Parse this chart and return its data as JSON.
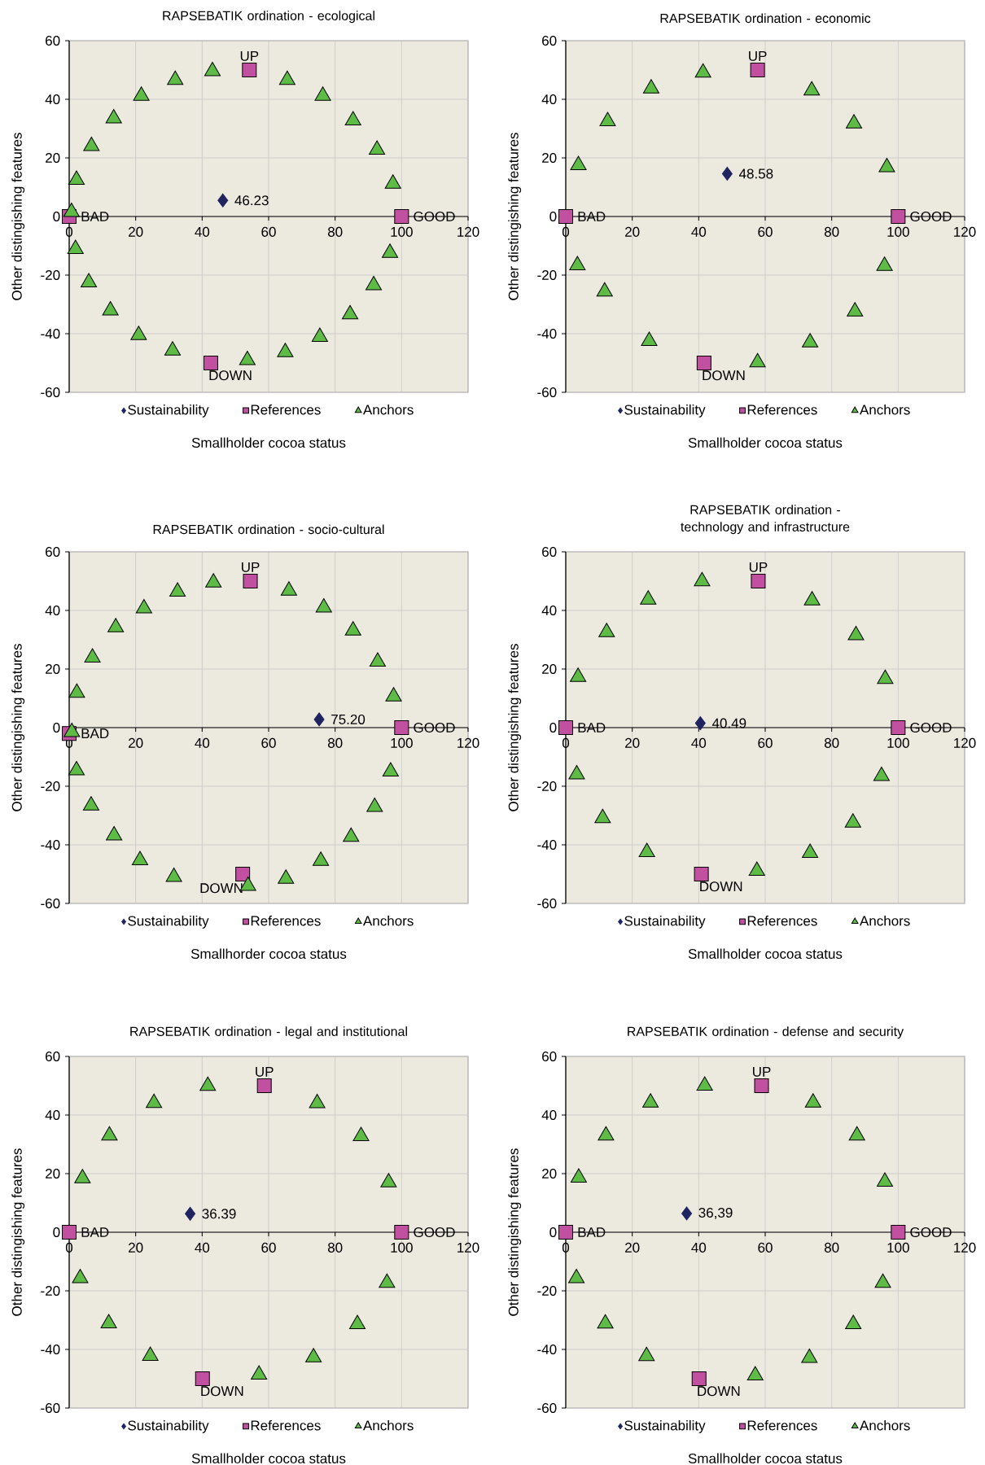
{
  "chart_data": [
    {
      "type": "scatter",
      "title": "RAPSEBATIK ordination - ecological",
      "xlabel": "Smallholder cocoa status",
      "ylabel": "Other distingishing features",
      "xlim": [
        0,
        120
      ],
      "ylim": [
        -60,
        60
      ],
      "xticks": [
        0,
        20,
        40,
        60,
        80,
        100,
        120
      ],
      "yticks": [
        -60,
        -40,
        -20,
        0,
        20,
        40,
        60
      ],
      "grid": true,
      "legend": "bottom",
      "series": [
        {
          "name": "Sustainability",
          "color": "#1f2461",
          "marker": "diamond",
          "x": [
            46.23
          ],
          "values": [
            5.5
          ]
        },
        {
          "name": "References",
          "color": "#c150a0",
          "marker": "square",
          "x": [
            0,
            100,
            54.2,
            42.6
          ],
          "values": [
            0,
            0,
            50,
            -50
          ]
        },
        {
          "name": "Anchors",
          "color": "#5dbb46",
          "marker": "triangle",
          "x": [
            0.7,
            2.2,
            6.7,
            13.4,
            21.7,
            31.9,
            43.1,
            65.6,
            76.3,
            85.4,
            92.6,
            97.4,
            96.5,
            91.6,
            84.5,
            75.4,
            65,
            53.6,
            31.1,
            20.9,
            12.4,
            5.9,
            1.9
          ],
          "values": [
            1.5,
            12.5,
            24,
            33.5,
            41.2,
            46.6,
            49.6,
            46.6,
            41.2,
            32.8,
            22.8,
            11.2,
            -12.4,
            -23.5,
            -33.4,
            -41.1,
            -46.3,
            -49,
            -45.8,
            -40.5,
            -32.1,
            -22.5,
            -11.1
          ]
        }
      ],
      "annotations": [
        {
          "text": "46.23",
          "x": 46.23,
          "y": 5.5
        },
        {
          "text": "BAD",
          "x": 0,
          "y": 0
        },
        {
          "text": "GOOD",
          "x": 100,
          "y": 0
        },
        {
          "text": "UP",
          "x": 54.2,
          "y": 50
        },
        {
          "text": "DOWN",
          "x": 42.6,
          "y": -50
        }
      ]
    },
    {
      "type": "scatter",
      "title": "RAPSEBATIK ordination - economic",
      "xlabel": "Smallholder cocoa status",
      "ylabel": "Other distingishing features",
      "xlim": [
        0,
        120
      ],
      "ylim": [
        -60,
        60
      ],
      "xticks": [
        0,
        20,
        40,
        60,
        80,
        100,
        120
      ],
      "yticks": [
        -60,
        -40,
        -20,
        0,
        20,
        40,
        60
      ],
      "grid": true,
      "legend": "bottom",
      "series": [
        {
          "name": "Sustainability",
          "color": "#1f2461",
          "marker": "diamond",
          "x": [
            48.58
          ],
          "values": [
            14.6
          ]
        },
        {
          "name": "References",
          "color": "#c150a0",
          "marker": "square",
          "x": [
            0,
            100,
            57.7,
            41.6
          ],
          "values": [
            0,
            0,
            50,
            -50
          ]
        },
        {
          "name": "Anchors",
          "color": "#5dbb46",
          "marker": "triangle",
          "x": [
            3.8,
            12.6,
            25.7,
            41.3,
            74,
            86.7,
            96.6,
            95.9,
            87,
            73.5,
            57.7,
            25.1,
            11.7,
            3.5
          ],
          "values": [
            17.5,
            32.5,
            43.7,
            49.1,
            43,
            31.7,
            16.8,
            -16.9,
            -32.4,
            -43,
            -49.8,
            -42.5,
            -25.6,
            -16.7
          ]
        }
      ],
      "annotations": [
        {
          "text": "48.58",
          "x": 48.58,
          "y": 14.6
        },
        {
          "text": "BAD",
          "x": 0,
          "y": 0
        },
        {
          "text": "GOOD",
          "x": 100,
          "y": 0
        },
        {
          "text": "UP",
          "x": 57.7,
          "y": 50
        },
        {
          "text": "DOWN",
          "x": 41.6,
          "y": -50
        }
      ]
    },
    {
      "type": "scatter",
      "title": "RAPSEBATIK ordination - socio-cultural",
      "xlabel": "Smallhorder cocoa status",
      "ylabel": "Other distingishing features",
      "xlim": [
        0,
        120
      ],
      "ylim": [
        -60,
        60
      ],
      "xticks": [
        0,
        20,
        40,
        60,
        80,
        100,
        120
      ],
      "yticks": [
        -60,
        -40,
        -20,
        0,
        20,
        40,
        60
      ],
      "grid": true,
      "legend": "bottom",
      "series": [
        {
          "name": "Sustainability",
          "color": "#1f2461",
          "marker": "diamond",
          "x": [
            75.2
          ],
          "values": [
            2.8
          ]
        },
        {
          "name": "References",
          "color": "#c150a0",
          "marker": "square",
          "x": [
            0,
            100,
            54.5,
            52.2
          ],
          "values": [
            -2,
            0,
            50,
            -50
          ]
        },
        {
          "name": "Anchors",
          "color": "#5dbb46",
          "marker": "triangle",
          "x": [
            0.8,
            2.3,
            7,
            14,
            22.5,
            32.6,
            43.4,
            66.1,
            76.6,
            85.4,
            92.8,
            97.6,
            96.7,
            91.9,
            84.8,
            75.7,
            65.2,
            53.8,
            31.5,
            21.3,
            13.5,
            6.6,
            2.2
          ],
          "values": [
            -1.5,
            11.9,
            23.9,
            34.2,
            40.7,
            46.4,
            49.5,
            46.7,
            41,
            33.1,
            22.5,
            10.6,
            -15,
            -27.1,
            -37.3,
            -45.5,
            -51.6,
            -54,
            -51,
            -45.3,
            -36.8,
            -26.6,
            -14.6
          ]
        }
      ],
      "annotations": [
        {
          "text": "75.20",
          "x": 75.2,
          "y": 2.8
        },
        {
          "text": "BAD",
          "x": 0,
          "y": -2
        },
        {
          "text": "GOOD",
          "x": 100,
          "y": 0
        },
        {
          "text": "UP",
          "x": 54.5,
          "y": 50
        },
        {
          "text": "DOWN",
          "x": 52.2,
          "y": -50
        }
      ]
    },
    {
      "type": "scatter",
      "title": "RAPSEBATIK ordination - technology and infrastructure",
      "xlabel": "Smallholder cocoa status",
      "ylabel": "Other distingishing features",
      "xlim": [
        0,
        120
      ],
      "ylim": [
        -60,
        60
      ],
      "xticks": [
        0,
        20,
        40,
        60,
        80,
        100,
        120
      ],
      "yticks": [
        -60,
        -40,
        -20,
        0,
        20,
        40,
        60
      ],
      "grid": true,
      "legend": "bottom",
      "series": [
        {
          "name": "Sustainability",
          "color": "#1f2461",
          "marker": "diamond",
          "x": [
            40.49
          ],
          "values": [
            1.5
          ]
        },
        {
          "name": "References",
          "color": "#c150a0",
          "marker": "square",
          "x": [
            0,
            100,
            57.9,
            40.8
          ],
          "values": [
            0,
            0,
            50,
            -50
          ]
        },
        {
          "name": "Anchors",
          "color": "#5dbb46",
          "marker": "triangle",
          "x": [
            3.7,
            12.3,
            24.8,
            41,
            74.1,
            87.3,
            96.1,
            95,
            86.4,
            73.5,
            57.5,
            24.4,
            11.1,
            3.3
          ],
          "values": [
            17.3,
            32.6,
            43.7,
            49.9,
            43.4,
            31.5,
            16.6,
            -16.5,
            -32.4,
            -42.8,
            -48.9,
            -42.5,
            -30.9,
            -16
          ]
        }
      ],
      "annotations": [
        {
          "text": "40.49",
          "x": 40.49,
          "y": 1.5
        },
        {
          "text": "BAD",
          "x": 0,
          "y": 0
        },
        {
          "text": "GOOD",
          "x": 100,
          "y": 0
        },
        {
          "text": "UP",
          "x": 57.9,
          "y": 50
        },
        {
          "text": "DOWN",
          "x": 40.8,
          "y": -50
        }
      ]
    },
    {
      "type": "scatter",
      "title": "RAPSEBATIK ordination - legal and institutional",
      "xlabel": "Smallholder cocoa status",
      "ylabel": "Other distingishing features",
      "xlim": [
        0,
        120
      ],
      "ylim": [
        -60,
        60
      ],
      "xticks": [
        0,
        20,
        40,
        60,
        80,
        100,
        120
      ],
      "yticks": [
        -60,
        -40,
        -20,
        0,
        20,
        40,
        60
      ],
      "grid": true,
      "legend": "bottom",
      "series": [
        {
          "name": "Sustainability",
          "color": "#1f2461",
          "marker": "diamond",
          "x": [
            36.39
          ],
          "values": [
            6.3
          ]
        },
        {
          "name": "References",
          "color": "#c150a0",
          "marker": "square",
          "x": [
            0,
            100,
            58.7,
            40.1
          ],
          "values": [
            0,
            0,
            50,
            -50
          ]
        },
        {
          "name": "Anchors",
          "color": "#5dbb46",
          "marker": "triangle",
          "x": [
            4,
            12.1,
            25.5,
            41.7,
            74.6,
            87.8,
            96.1,
            95.6,
            86.7,
            73.5,
            57.1,
            24.4,
            11.9,
            3.3
          ],
          "values": [
            18.4,
            33,
            44.1,
            49.9,
            44,
            32.8,
            17,
            -17.3,
            -31.4,
            -42.7,
            -48.6,
            -42.2,
            -31.1,
            -15.7
          ]
        }
      ],
      "annotations": [
        {
          "text": "36.39",
          "x": 36.39,
          "y": 6.3
        },
        {
          "text": "BAD",
          "x": 0,
          "y": 0
        },
        {
          "text": "GOOD",
          "x": 100,
          "y": 0
        },
        {
          "text": "UP",
          "x": 58.7,
          "y": 50
        },
        {
          "text": "DOWN",
          "x": 40.1,
          "y": -50
        }
      ]
    },
    {
      "type": "scatter",
      "title": "RAPSEBATIK ordination - defense and security",
      "xlabel": "Smallholder cocoa status",
      "ylabel": "Other distingishing features",
      "xlim": [
        0,
        120
      ],
      "ylim": [
        -60,
        60
      ],
      "xticks": [
        0,
        20,
        40,
        60,
        80,
        100,
        120
      ],
      "yticks": [
        -60,
        -40,
        -20,
        0,
        20,
        40,
        60
      ],
      "grid": true,
      "legend": "bottom",
      "series": [
        {
          "name": "Sustainability",
          "color": "#1f2461",
          "marker": "diamond",
          "x": [
            36.39
          ],
          "values": [
            6.4
          ]
        },
        {
          "name": "References",
          "color": "#c150a0",
          "marker": "square",
          "x": [
            0,
            100,
            58.9,
            40.1
          ],
          "values": [
            0,
            0,
            50,
            -50
          ]
        },
        {
          "name": "Anchors",
          "color": "#5dbb46",
          "marker": "triangle",
          "x": [
            3.9,
            12.1,
            25.5,
            41.8,
            74.4,
            87.6,
            96,
            95.4,
            86.5,
            73.3,
            57,
            24.3,
            11.9,
            3.2
          ],
          "values": [
            18.6,
            33,
            44.2,
            50,
            44.2,
            33,
            17.2,
            -17.3,
            -31.4,
            -42.9,
            -48.9,
            -42.3,
            -31.2,
            -15.7
          ]
        }
      ],
      "annotations": [
        {
          "text": "36,39",
          "x": 36.39,
          "y": 6.4
        },
        {
          "text": "BAD",
          "x": 0,
          "y": 0
        },
        {
          "text": "GOOD",
          "x": 100,
          "y": 0
        },
        {
          "text": "UP",
          "x": 58.9,
          "y": 50
        },
        {
          "text": "DOWN",
          "x": 40.1,
          "y": -50
        }
      ]
    }
  ]
}
